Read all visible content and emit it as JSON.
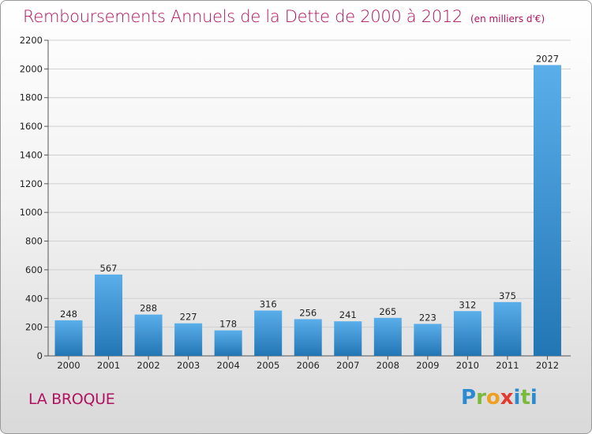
{
  "header": {
    "title": "Remboursements Annuels de la Dette de 2000 à 2012",
    "unit": "(en milliers d'€)"
  },
  "footer": {
    "commune": "LA BROQUE",
    "logo": "Proxiti"
  },
  "colors": {
    "title": "#b0125f",
    "bar_light": "#5aaeea",
    "bar_dark": "#2376b4",
    "grid": "#cfcfcf"
  },
  "chart_data": {
    "type": "bar",
    "title": "Remboursements Annuels de la Dette de 2000 à 2012",
    "categories": [
      "2000",
      "2001",
      "2002",
      "2003",
      "2004",
      "2005",
      "2006",
      "2007",
      "2008",
      "2009",
      "2010",
      "2011",
      "2012"
    ],
    "values": [
      248,
      567,
      288,
      227,
      178,
      316,
      256,
      241,
      265,
      223,
      312,
      375,
      2027
    ],
    "ylim": [
      0,
      2200
    ],
    "yticks": [
      0,
      200,
      400,
      600,
      800,
      1000,
      1200,
      1400,
      1600,
      1800,
      2000,
      2200
    ],
    "grid": true,
    "legend": "none"
  }
}
